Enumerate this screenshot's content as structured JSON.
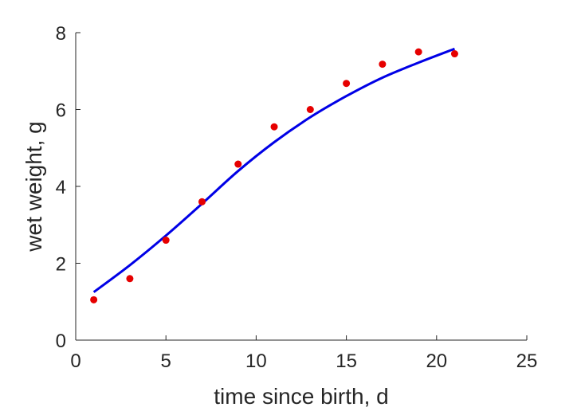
{
  "chart_data": {
    "type": "scatter",
    "title": "",
    "xlabel": "time since birth, d",
    "ylabel": "wet weight, g",
    "xlim": [
      0,
      25
    ],
    "ylim": [
      0,
      8
    ],
    "xticks": [
      0,
      5,
      10,
      15,
      20,
      25
    ],
    "yticks": [
      0,
      2,
      4,
      6,
      8
    ],
    "grid": false,
    "series": [
      {
        "type": "scatter",
        "color": "#e60000",
        "x": [
          1,
          3,
          5,
          7,
          9,
          11,
          13,
          15,
          17,
          19,
          21
        ],
        "y": [
          1.05,
          1.6,
          2.6,
          3.6,
          4.58,
          5.55,
          6.0,
          6.68,
          7.18,
          7.5,
          7.45
        ]
      },
      {
        "type": "line",
        "color": "#0000e6",
        "x": [
          1,
          3,
          5,
          7,
          9,
          11,
          13,
          15,
          17,
          19,
          21
        ],
        "y": [
          1.25,
          1.95,
          2.72,
          3.55,
          4.4,
          5.15,
          5.8,
          6.35,
          6.83,
          7.22,
          7.58
        ]
      }
    ]
  }
}
